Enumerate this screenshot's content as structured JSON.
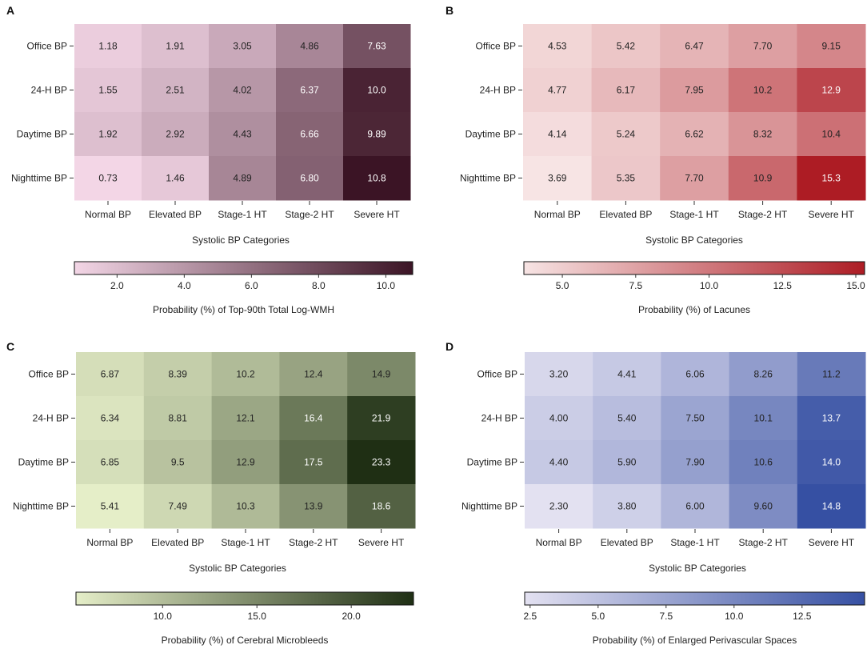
{
  "chart_data": [
    {
      "type": "heatmap",
      "panel_label": "A",
      "rows": [
        "Office BP",
        "24-H BP",
        "Daytime BP",
        "Nighttime BP"
      ],
      "columns": [
        "Normal BP",
        "Elevated BP",
        "Stage-1 HT",
        "Stage-2 HT",
        "Severe HT"
      ],
      "values": [
        [
          "1.18",
          "1.91",
          "3.05",
          "4.86",
          "7.63"
        ],
        [
          "1.55",
          "2.51",
          "4.02",
          "6.37",
          "10.0"
        ],
        [
          "1.92",
          "2.92",
          "4.43",
          "6.66",
          "9.89"
        ],
        [
          "0.73",
          "1.46",
          "4.89",
          "6.80",
          "10.8"
        ]
      ],
      "xlabel": "Systolic BP Categories",
      "colorbar_label": "Probability (%) of Top-90th Total Log-WMH",
      "colorbar_range": [
        0.73,
        10.8
      ],
      "colorbar_ticks": [
        "2.0",
        "4.0",
        "6.0",
        "8.0",
        "10.0"
      ],
      "color_low": "#f3d6e6",
      "color_high": "#3b1425"
    },
    {
      "type": "heatmap",
      "panel_label": "B",
      "rows": [
        "Office BP",
        "24-H BP",
        "Daytime BP",
        "Nighttime BP"
      ],
      "columns": [
        "Normal BP",
        "Elevated BP",
        "Stage-1 HT",
        "Stage-2 HT",
        "Severe HT"
      ],
      "values": [
        [
          "4.53",
          "5.42",
          "6.47",
          "7.70",
          "9.15"
        ],
        [
          "4.77",
          "6.17",
          "7.95",
          "10.2",
          "12.9"
        ],
        [
          "4.14",
          "5.24",
          "6.62",
          "8.32",
          "10.4"
        ],
        [
          "3.69",
          "5.35",
          "7.70",
          "10.9",
          "15.3"
        ]
      ],
      "xlabel": "Systolic BP Categories",
      "colorbar_label": "Probability (%) of Lacunes",
      "colorbar_range": [
        3.69,
        15.3
      ],
      "colorbar_ticks": [
        "5.0",
        "7.5",
        "10.0",
        "12.5",
        "15.0"
      ],
      "color_low": "#f7e4e4",
      "color_high": "#ad1c24"
    },
    {
      "type": "heatmap",
      "panel_label": "C",
      "rows": [
        "Office BP",
        "24-H BP",
        "Daytime BP",
        "Nighttime BP"
      ],
      "columns": [
        "Normal BP",
        "Elevated BP",
        "Stage-1 HT",
        "Stage-2 HT",
        "Severe HT"
      ],
      "values": [
        [
          "6.87",
          "8.39",
          "10.2",
          "12.4",
          "14.9"
        ],
        [
          "6.34",
          "8.81",
          "12.1",
          "16.4",
          "21.9"
        ],
        [
          "6.85",
          "9.5",
          "12.9",
          "17.5",
          "23.3"
        ],
        [
          "5.41",
          "7.49",
          "10.3",
          "13.9",
          "18.6"
        ]
      ],
      "xlabel": "Systolic BP Categories",
      "colorbar_label": "Probability (%) of Cerebral Microbleeds",
      "colorbar_range": [
        5.41,
        23.3
      ],
      "colorbar_ticks": [
        "10.0",
        "15.0",
        "20.0"
      ],
      "color_low": "#e5eec8",
      "color_high": "#1f2f14"
    },
    {
      "type": "heatmap",
      "panel_label": "D",
      "rows": [
        "Office BP",
        "24-H BP",
        "Daytime BP",
        "Nighttime BP"
      ],
      "columns": [
        "Normal BP",
        "Elevated BP",
        "Stage-1 HT",
        "Stage-2 HT",
        "Severe HT"
      ],
      "values": [
        [
          "3.20",
          "4.41",
          "6.06",
          "8.26",
          "11.2"
        ],
        [
          "4.00",
          "5.40",
          "7.50",
          "10.1",
          "13.7"
        ],
        [
          "4.40",
          "5.90",
          "7.90",
          "10.6",
          "14.0"
        ],
        [
          "2.30",
          "3.80",
          "6.00",
          "9.60",
          "14.8"
        ]
      ],
      "xlabel": "Systolic BP Categories",
      "colorbar_label": "Probability (%) of Enlarged Perivascular Spaces",
      "colorbar_range": [
        2.3,
        14.8
      ],
      "colorbar_ticks": [
        "2.5",
        "5.0",
        "7.5",
        "10.0",
        "12.5"
      ],
      "color_low": "#e3e1f1",
      "color_high": "#3650a3"
    }
  ]
}
